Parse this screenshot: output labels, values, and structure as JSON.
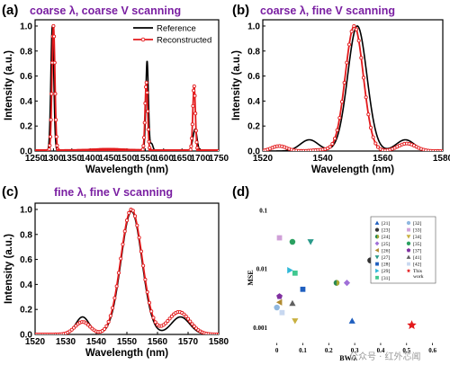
{
  "panel_labels": [
    "(a)",
    "(b)",
    "(c)",
    "(d)"
  ],
  "watermark": "公众号 · 红外芯闻",
  "colors": {
    "reference": "#000000",
    "reconstructed": "#e31a1c",
    "title": "#7a1fa2"
  },
  "chart_data": [
    {
      "panel": "(a)",
      "type": "line",
      "title": "coarse λ, coarse V scanning",
      "xlabel": "Wavelength (nm)",
      "ylabel": "Intensity (a.u.)",
      "xlim": [
        1250,
        1750
      ],
      "ylim": [
        0,
        1.05
      ],
      "xticks": [
        1250,
        1300,
        1350,
        1400,
        1450,
        1500,
        1550,
        1600,
        1650,
        1700,
        1750
      ],
      "yticks": [
        0.0,
        0.2,
        0.4,
        0.6,
        0.8,
        1.0
      ],
      "legend": {
        "position": "top-right",
        "entries": [
          "Reference",
          "Reconstructed"
        ]
      },
      "series": [
        {
          "name": "Reference",
          "peaks": [
            [
              1297,
              1.0,
              4
            ],
            [
              1555,
              0.72,
              3.5
            ],
            [
              1567,
              0.06,
              4
            ],
            [
              1686,
              0.17,
              5
            ],
            [
              1678,
              0.03,
              4
            ],
            [
              1450,
              0.015,
              30
            ]
          ]
        },
        {
          "name": "Reconstructed",
          "peaks": [
            [
              1300,
              1.0,
              4
            ],
            [
              1553,
              0.55,
              3.5
            ],
            [
              1683,
              0.52,
              3.5
            ],
            [
              1450,
              0.01,
              40
            ]
          ]
        }
      ]
    },
    {
      "panel": "(b)",
      "type": "line",
      "title": "coarse λ, fine V scanning",
      "xlabel": "Wavelength (nm)",
      "ylabel": "Intensity (a.u.)",
      "xlim": [
        1520,
        1580
      ],
      "ylim": [
        0,
        1.05
      ],
      "xticks": [
        1520,
        1540,
        1560,
        1580
      ],
      "yticks": [
        0.0,
        0.2,
        0.4,
        0.6,
        0.8,
        1.0
      ],
      "series": [
        {
          "name": "Reference",
          "peaks": [
            [
              1551.5,
              1.0,
              3.2
            ],
            [
              1535.5,
              0.09,
              3
            ],
            [
              1567.5,
              0.09,
              3
            ]
          ]
        },
        {
          "name": "Reconstructed",
          "peaks": [
            [
              1550.5,
              1.0,
              3.0
            ],
            [
              1525.5,
              0.04,
              2.5
            ],
            [
              1568,
              0.06,
              3
            ],
            [
              1540,
              0.01,
              3
            ]
          ]
        }
      ]
    },
    {
      "panel": "(c)",
      "type": "line",
      "title": "fine λ, fine V scanning",
      "xlabel": "Wavelength (nm)",
      "ylabel": "Intensity (a.u.)",
      "xlim": [
        1520,
        1580
      ],
      "ylim": [
        0,
        1.05
      ],
      "xticks": [
        1520,
        1530,
        1540,
        1550,
        1560,
        1570,
        1580
      ],
      "yticks": [
        0.0,
        0.2,
        0.4,
        0.6,
        0.8,
        1.0
      ],
      "series": [
        {
          "name": "Reference",
          "peaks": [
            [
              1551.5,
              0.985,
              3.4
            ],
            [
              1535.5,
              0.14,
              2.2
            ],
            [
              1567.5,
              0.14,
              3
            ]
          ]
        },
        {
          "name": "Reconstructed",
          "peaks": [
            [
              1551.5,
              1.0,
              3.5
            ],
            [
              1535.5,
              0.1,
              2.5
            ],
            [
              1567,
              0.18,
              3.5
            ]
          ]
        }
      ]
    },
    {
      "panel": "(d)",
      "type": "scatter",
      "xlabel": "BW/λ",
      "ylabel": "MSE",
      "xlim": [
        -0.03,
        0.65
      ],
      "ylim": [
        0.0005,
        0.1
      ],
      "yscale": "log",
      "xticks": [
        0.0,
        0.1,
        0.2,
        0.3,
        0.4,
        0.5,
        0.6
      ],
      "yticks": [
        0.001,
        0.01,
        0.1
      ],
      "ytick_labels": [
        "0.001",
        "0.01",
        "0.1"
      ],
      "legend": {
        "position": "top-right"
      },
      "points": [
        {
          "label": "[21]",
          "color": "#1f5fbf",
          "marker": "triangle",
          "x": 0.29,
          "y": 0.0013
        },
        {
          "label": "[23]",
          "color": "#333333",
          "marker": "circle",
          "x": 0.36,
          "y": 0.014
        },
        {
          "label": "[24]",
          "color": "#a8a832",
          "marker": "half",
          "x": 0.23,
          "y": 0.0058
        },
        {
          "label": "[25]",
          "color": "#a070d8",
          "marker": "diamond",
          "x": 0.27,
          "y": 0.0058
        },
        {
          "label": "[26]",
          "color": "#b08a30",
          "marker": "triangle-left",
          "x": 0.01,
          "y": 0.0027
        },
        {
          "label": "[27]",
          "color": "#2a9a8a",
          "marker": "triangle-down",
          "x": 0.13,
          "y": 0.029
        },
        {
          "label": "[28]",
          "color": "#1f5fbf",
          "marker": "square",
          "x": 0.1,
          "y": 0.0045
        },
        {
          "label": "[29]",
          "color": "#30b8d8",
          "marker": "triangle-right",
          "x": 0.05,
          "y": 0.0095
        },
        {
          "label": "[31]",
          "color": "#40c890",
          "marker": "square",
          "x": 0.07,
          "y": 0.0085
        },
        {
          "label": "[32]",
          "color": "#90b8e0",
          "marker": "circle",
          "x": 0.0,
          "y": 0.0022
        },
        {
          "label": "[33]",
          "color": "#d0a0d8",
          "marker": "square",
          "x": 0.01,
          "y": 0.034
        },
        {
          "label": "[34]",
          "color": "#c8b040",
          "marker": "triangle-down",
          "x": 0.07,
          "y": 0.0013
        },
        {
          "label": "[35]",
          "color": "#2aa060",
          "marker": "circle",
          "x": 0.06,
          "y": 0.029
        },
        {
          "label": "[37]",
          "color": "#8030a0",
          "marker": "pentagon",
          "x": 0.01,
          "y": 0.0034
        },
        {
          "label": "[41]",
          "color": "#606060",
          "marker": "triangle",
          "x": 0.06,
          "y": 0.0026
        },
        {
          "label": "[42]",
          "color": "#c8d8f0",
          "marker": "square",
          "x": 0.02,
          "y": 0.0018
        },
        {
          "label": "This work",
          "color": "#e31a1c",
          "marker": "star",
          "x": 0.52,
          "y": 0.0011
        }
      ]
    }
  ]
}
